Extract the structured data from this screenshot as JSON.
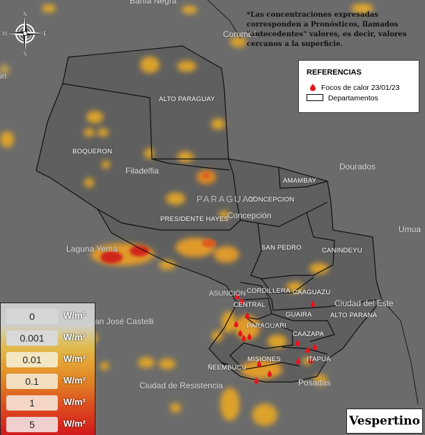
{
  "map": {
    "note": "*Las concentraciones expresadas corresponden a Pronósticos, llamados \"antecedentes\" valores, es decir, valores cercanos a la superficie.",
    "legend": {
      "title": "REFERENCIAS",
      "fire_label": "Focos de calor 23/01/23",
      "dept_label": "Departamentos",
      "fire_color": "#e8141c"
    },
    "period_label": "Vespertino",
    "scale": [
      {
        "value": "0",
        "unit": "W/m²"
      },
      {
        "value": "0.001",
        "unit": "W/m²"
      },
      {
        "value": "0.01",
        "unit": "W/m²"
      },
      {
        "value": "0.1",
        "unit": "W/m²"
      },
      {
        "value": "1",
        "unit": "W/m²"
      },
      {
        "value": "5",
        "unit": "W/m²"
      }
    ],
    "compass": {
      "n": "N",
      "s": "S",
      "e": "E",
      "w": "W"
    },
    "places": {
      "corumba": "Corumbá",
      "dourados": "Dourados",
      "umua": "Umua",
      "paraguay": "PARAGUAY",
      "filadelfia": "Filadelfia",
      "concepcion_city": "Concepción",
      "laguna_yema": "Laguna Yema",
      "asuncion": "ASUNCIÓN",
      "ciudad_del_este": "Ciudad del Este",
      "san_jose": "an José Castelli",
      "resistencia": "Ciudad de Resistencia",
      "posadas": "Posadas",
      "bahia_negra": "Bahía Negra",
      "iri": "iri"
    },
    "departments": {
      "alto_paraguay": "ALTO PARAGUAY",
      "boqueron": "BOQUERON",
      "presidente_hayes": "PRESIDENTE HAYES",
      "amambay": "AMAMBAY",
      "concepcion": "CONCEPCION",
      "san_pedro": "SAN PEDRO",
      "canindeyu": "CANINDEYU",
      "cordillera": "CORDILLERA",
      "caaguazu": "CAAGUAZU",
      "central": "CENTRAL",
      "guaira": "GUAIRA",
      "alto_parana": "ALTO PARANA",
      "paraguari": "PARAGUARI",
      "caazapa": "CAAZAPA",
      "misiones": "MISIONES",
      "itapua": "ITAPUA",
      "neembucu": "ÑEEMBUCU"
    }
  }
}
